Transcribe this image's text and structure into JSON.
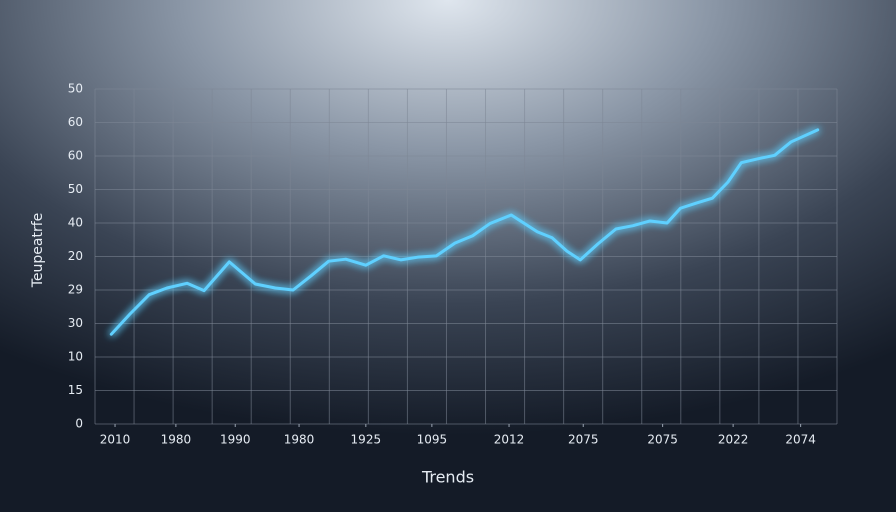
{
  "chart_data": {
    "type": "line",
    "y_label": "Teupeatrfe",
    "x_label": "Trends",
    "xlim": [
      0,
      100
    ],
    "xticks": [
      {
        "value": 2.7,
        "label": "2010"
      },
      {
        "value": 10.9,
        "label": "1980"
      },
      {
        "value": 18.9,
        "label": "1990"
      },
      {
        "value": 27.5,
        "label": "1980"
      },
      {
        "value": 36.5,
        "label": "1925"
      },
      {
        "value": 45.4,
        "label": "1095"
      },
      {
        "value": 55.8,
        "label": "2012"
      },
      {
        "value": 65.8,
        "label": "2075"
      },
      {
        "value": 76.5,
        "label": "2075"
      },
      {
        "value": 86.0,
        "label": "2022"
      },
      {
        "value": 95.1,
        "label": "2074"
      }
    ],
    "ylim": [
      0,
      50
    ],
    "yticks": [
      0,
      {
        "value": 5,
        "label": "15"
      },
      10,
      {
        "value": 15,
        "label": "30"
      },
      {
        "value": 20,
        "label": "29"
      },
      {
        "value": 25,
        "label": "20"
      },
      {
        "value": 30,
        "label": "40"
      },
      {
        "value": 35,
        "label": "50"
      },
      {
        "value": 40,
        "label": "60"
      },
      {
        "value": 45,
        "label": "60"
      },
      50
    ],
    "grid": true,
    "series": [
      {
        "color": "#5fd0ff",
        "x": [
          2.2,
          4.7,
          7.3,
          9.7,
          12.4,
          14.7,
          18.1,
          21.6,
          24.3,
          26.7,
          29.1,
          31.5,
          33.8,
          36.5,
          38.9,
          41.2,
          43.5,
          46.0,
          48.5,
          50.9,
          53.2,
          56.1,
          59.6,
          61.6,
          63.6,
          65.4,
          67.8,
          70.2,
          72.5,
          74.8,
          77.1,
          78.9,
          81.1,
          83.2,
          85.3,
          87.1,
          89.4,
          91.6,
          93.8,
          97.4
        ],
        "values": [
          13.4,
          16.4,
          19.3,
          20.3,
          21.0,
          19.9,
          24.2,
          20.9,
          20.3,
          20.0,
          22.1,
          24.3,
          24.6,
          23.7,
          25.1,
          24.5,
          24.9,
          25.1,
          27.0,
          28.1,
          29.9,
          31.2,
          28.7,
          27.8,
          25.8,
          24.5,
          26.9,
          29.1,
          29.6,
          30.3,
          30.0,
          32.2,
          33.0,
          33.7,
          36.1,
          39.0,
          39.6,
          40.1,
          42.1,
          43.9
        ]
      }
    ]
  }
}
